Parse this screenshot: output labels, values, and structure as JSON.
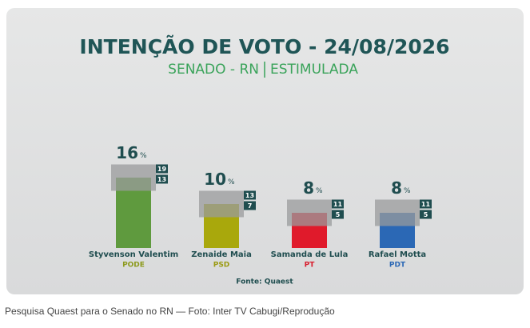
{
  "chart_data": {
    "type": "bar",
    "title": "INTENÇÃO DE VOTO - 24/08/2026",
    "subtitle": [
      "SENADO - RN",
      "ESTIMULADA"
    ],
    "categories": [
      "Styvenson Valentim",
      "Zenaide Maia",
      "Samanda de Lula",
      "Rafael Motta"
    ],
    "parties": [
      "PODE",
      "PSD",
      "PT",
      "PDT"
    ],
    "values": [
      16,
      10,
      8,
      8
    ],
    "unit": "%",
    "upper": [
      19,
      13,
      11,
      11
    ],
    "lower": [
      13,
      7,
      5,
      5
    ],
    "colors": [
      "#5f9a3e",
      "#a9a80c",
      "#e01a2b",
      "#2b68b5"
    ],
    "party_colors": [
      "#8c9a1c",
      "#9a9a10",
      "#d81b2b",
      "#2b68b5"
    ],
    "source": "Fonte: Quaest"
  },
  "caption": "Pesquisa Quaest para o Senado no RN — Foto: Inter TV Cabugi/Reprodução"
}
